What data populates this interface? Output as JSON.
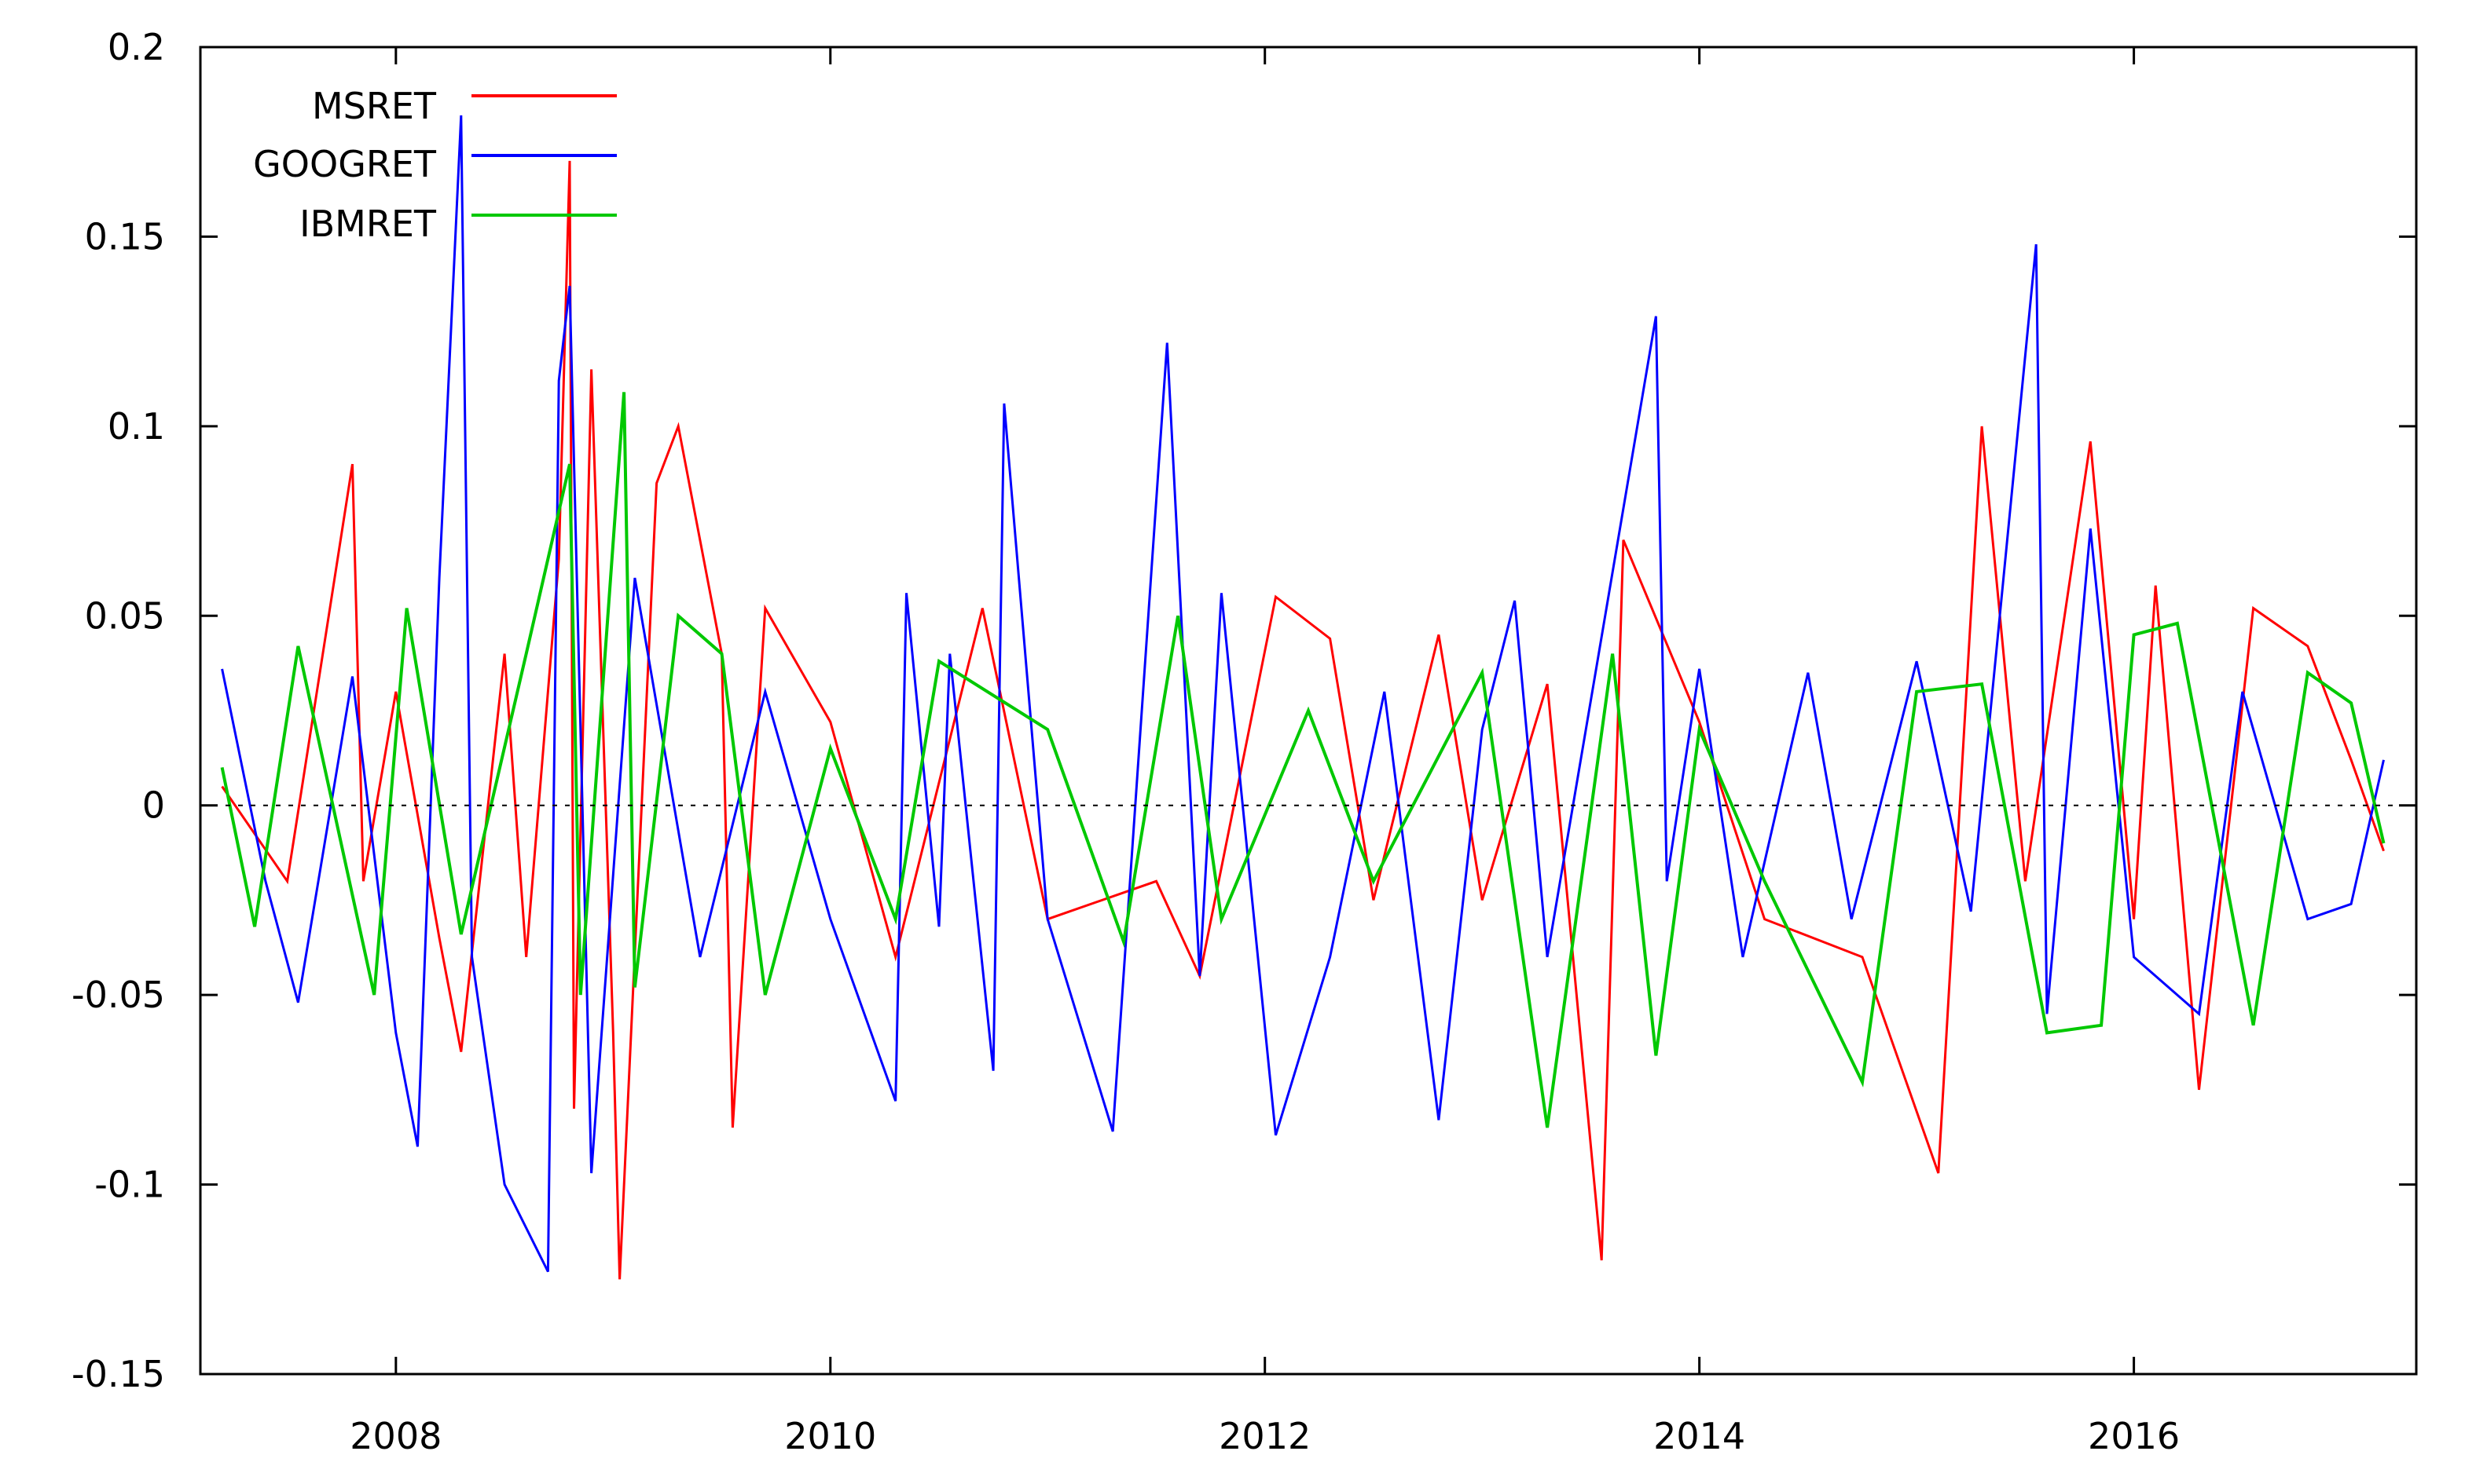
{
  "chart_data": {
    "type": "line",
    "title": "",
    "xlabel": "",
    "ylabel": "",
    "xlim": [
      2007.1,
      2017.3
    ],
    "ylim": [
      -0.15,
      0.2
    ],
    "x_ticks": [
      2008,
      2010,
      2012,
      2014,
      2016
    ],
    "x_tick_labels": [
      "2008",
      "2010",
      "2012",
      "2014",
      "2016"
    ],
    "y_ticks": [
      -0.15,
      -0.1,
      -0.05,
      0,
      0.05,
      0.1,
      0.15,
      0.2
    ],
    "y_tick_labels": [
      "-0.15",
      "-0.1",
      "-0.05",
      "0",
      "0.05",
      "0.1",
      "0.15",
      "0.2"
    ],
    "grid": false,
    "legend_position": "top-left",
    "baseline_y": 0,
    "series": [
      {
        "name": "MSRET",
        "color": "#ff0000",
        "values": [
          [
            2007.2,
            0.005
          ],
          [
            2007.5,
            -0.02
          ],
          [
            2007.8,
            0.09
          ],
          [
            2007.85,
            -0.02
          ],
          [
            2008.0,
            0.03
          ],
          [
            2008.2,
            -0.035
          ],
          [
            2008.3,
            -0.065
          ],
          [
            2008.5,
            0.04
          ],
          [
            2008.6,
            -0.04
          ],
          [
            2008.75,
            0.065
          ],
          [
            2008.8,
            0.17
          ],
          [
            2008.82,
            -0.08
          ],
          [
            2008.9,
            0.115
          ],
          [
            2009.0,
            -0.06
          ],
          [
            2009.03,
            -0.125
          ],
          [
            2009.2,
            0.085
          ],
          [
            2009.3,
            0.1
          ],
          [
            2009.5,
            0.04
          ],
          [
            2009.55,
            -0.085
          ],
          [
            2009.7,
            0.052
          ],
          [
            2010.0,
            0.022
          ],
          [
            2010.3,
            -0.04
          ],
          [
            2010.7,
            0.052
          ],
          [
            2011.0,
            -0.03
          ],
          [
            2011.5,
            -0.02
          ],
          [
            2011.7,
            -0.045
          ],
          [
            2012.05,
            0.055
          ],
          [
            2012.3,
            0.044
          ],
          [
            2012.5,
            -0.025
          ],
          [
            2012.8,
            0.045
          ],
          [
            2013.0,
            -0.025
          ],
          [
            2013.3,
            0.032
          ],
          [
            2013.55,
            -0.12
          ],
          [
            2013.65,
            0.07
          ],
          [
            2014.0,
            0.022
          ],
          [
            2014.3,
            -0.03
          ],
          [
            2014.75,
            -0.04
          ],
          [
            2015.1,
            -0.097
          ],
          [
            2015.3,
            0.1
          ],
          [
            2015.5,
            -0.02
          ],
          [
            2015.8,
            0.096
          ],
          [
            2016.0,
            -0.03
          ],
          [
            2016.1,
            0.058
          ],
          [
            2016.3,
            -0.075
          ],
          [
            2016.55,
            0.052
          ],
          [
            2016.8,
            0.042
          ],
          [
            2017.0,
            0.012
          ],
          [
            2017.15,
            -0.012
          ]
        ]
      },
      {
        "name": "GOOGRET",
        "color": "#0000ff",
        "values": [
          [
            2007.2,
            0.036
          ],
          [
            2007.4,
            -0.02
          ],
          [
            2007.55,
            -0.052
          ],
          [
            2007.8,
            0.034
          ],
          [
            2008.0,
            -0.06
          ],
          [
            2008.1,
            -0.09
          ],
          [
            2008.2,
            0.06
          ],
          [
            2008.3,
            0.182
          ],
          [
            2008.35,
            -0.04
          ],
          [
            2008.5,
            -0.1
          ],
          [
            2008.7,
            -0.123
          ],
          [
            2008.75,
            0.112
          ],
          [
            2008.8,
            0.137
          ],
          [
            2008.9,
            -0.097
          ],
          [
            2009.1,
            0.06
          ],
          [
            2009.4,
            -0.04
          ],
          [
            2009.7,
            0.03
          ],
          [
            2010.0,
            -0.03
          ],
          [
            2010.3,
            -0.078
          ],
          [
            2010.35,
            0.056
          ],
          [
            2010.5,
            -0.032
          ],
          [
            2010.55,
            0.04
          ],
          [
            2010.75,
            -0.07
          ],
          [
            2010.8,
            0.106
          ],
          [
            2011.0,
            -0.03
          ],
          [
            2011.3,
            -0.086
          ],
          [
            2011.55,
            0.122
          ],
          [
            2011.7,
            -0.045
          ],
          [
            2011.8,
            0.056
          ],
          [
            2012.05,
            -0.087
          ],
          [
            2012.3,
            -0.04
          ],
          [
            2012.55,
            0.03
          ],
          [
            2012.8,
            -0.083
          ],
          [
            2013.0,
            0.02
          ],
          [
            2013.15,
            0.054
          ],
          [
            2013.3,
            -0.04
          ],
          [
            2013.8,
            0.129
          ],
          [
            2013.85,
            -0.02
          ],
          [
            2014.0,
            0.036
          ],
          [
            2014.2,
            -0.04
          ],
          [
            2014.5,
            0.035
          ],
          [
            2014.7,
            -0.03
          ],
          [
            2015.0,
            0.038
          ],
          [
            2015.25,
            -0.028
          ],
          [
            2015.55,
            0.148
          ],
          [
            2015.6,
            -0.055
          ],
          [
            2015.8,
            0.073
          ],
          [
            2016.0,
            -0.04
          ],
          [
            2016.3,
            -0.055
          ],
          [
            2016.5,
            0.03
          ],
          [
            2016.8,
            -0.03
          ],
          [
            2017.0,
            -0.026
          ],
          [
            2017.15,
            0.012
          ]
        ]
      },
      {
        "name": "IBMRET",
        "color": "#00c800",
        "values": [
          [
            2007.2,
            0.01
          ],
          [
            2007.35,
            -0.032
          ],
          [
            2007.55,
            0.042
          ],
          [
            2007.9,
            -0.05
          ],
          [
            2008.05,
            0.052
          ],
          [
            2008.3,
            -0.034
          ],
          [
            2008.6,
            0.04
          ],
          [
            2008.8,
            0.09
          ],
          [
            2008.85,
            -0.05
          ],
          [
            2009.05,
            0.109
          ],
          [
            2009.1,
            -0.048
          ],
          [
            2009.3,
            0.05
          ],
          [
            2009.5,
            0.04
          ],
          [
            2009.7,
            -0.05
          ],
          [
            2010.0,
            0.015
          ],
          [
            2010.3,
            -0.03
          ],
          [
            2010.5,
            0.038
          ],
          [
            2011.0,
            0.02
          ],
          [
            2011.35,
            -0.036
          ],
          [
            2011.6,
            0.05
          ],
          [
            2011.8,
            -0.03
          ],
          [
            2012.2,
            0.025
          ],
          [
            2012.5,
            -0.02
          ],
          [
            2013.0,
            0.035
          ],
          [
            2013.3,
            -0.085
          ],
          [
            2013.6,
            0.04
          ],
          [
            2013.8,
            -0.066
          ],
          [
            2014.0,
            0.02
          ],
          [
            2014.3,
            -0.02
          ],
          [
            2014.75,
            -0.073
          ],
          [
            2015.0,
            0.03
          ],
          [
            2015.3,
            0.032
          ],
          [
            2015.6,
            -0.06
          ],
          [
            2015.85,
            -0.058
          ],
          [
            2016.0,
            0.045
          ],
          [
            2016.2,
            0.048
          ],
          [
            2016.55,
            -0.058
          ],
          [
            2016.8,
            0.035
          ],
          [
            2017.0,
            0.027
          ],
          [
            2017.15,
            -0.01
          ]
        ]
      }
    ]
  }
}
